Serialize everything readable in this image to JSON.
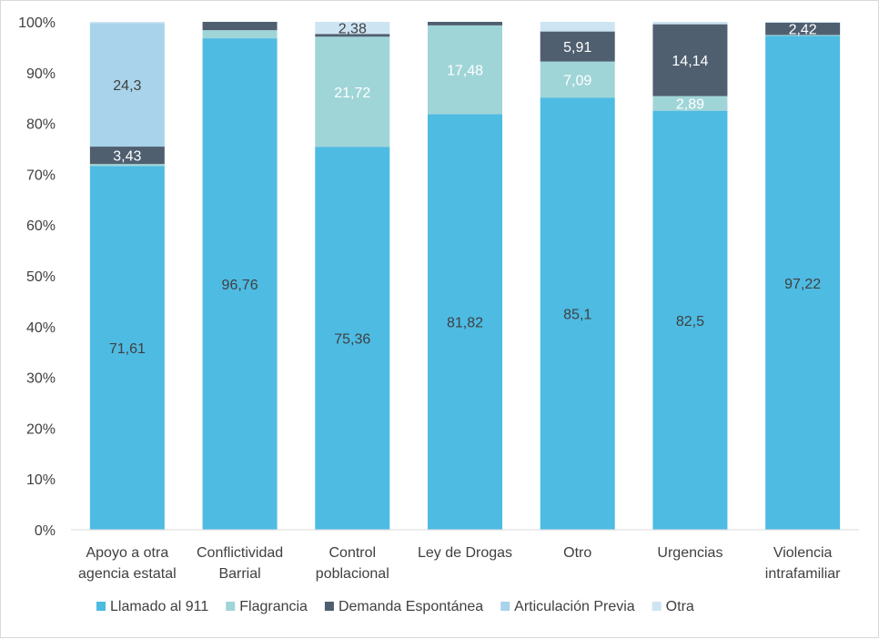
{
  "chart_data": {
    "type": "bar",
    "stacked": true,
    "percent_stacked": true,
    "categories": [
      [
        "Apoyo a otra",
        "agencia estatal"
      ],
      [
        "Conflictividad",
        "Barrial"
      ],
      [
        "Control",
        "poblacional"
      ],
      [
        "Ley de Drogas"
      ],
      [
        "Otro"
      ],
      [
        "Urgencias"
      ],
      [
        "Violencia",
        "intrafamiliar"
      ]
    ],
    "series": [
      {
        "name": "Llamado al 911",
        "color": "#4ebbe3",
        "label_color": "#404040",
        "values": [
          71.61,
          96.76,
          75.36,
          81.82,
          85.1,
          82.5,
          97.22
        ],
        "labels": [
          "71,61",
          "96,76",
          "75,36",
          "81,82",
          "85,1",
          "82,5",
          "97,22"
        ]
      },
      {
        "name": "Flagrancia",
        "color": "#a0d5d8",
        "label_color": "#ffffff",
        "values": [
          0.4,
          1.6,
          21.72,
          17.48,
          7.09,
          2.89,
          0.2
        ],
        "labels": [
          "",
          "",
          "21,72",
          "17,48",
          "7,09",
          "2,89",
          ""
        ]
      },
      {
        "name": "Demanda Espontánea",
        "color": "#4f5f70",
        "label_color": "#ffffff",
        "values": [
          3.43,
          1.64,
          0.54,
          0.7,
          5.91,
          14.14,
          2.42
        ],
        "labels": [
          "3,43",
          "",
          "",
          "",
          "5,91",
          "14,14",
          "2,42"
        ]
      },
      {
        "name": "Articulación Previa",
        "color": "#a9d3ea",
        "label_color": "#404040",
        "values": [
          24.3,
          0,
          0,
          0,
          0,
          0,
          0
        ],
        "labels": [
          "24,3",
          "",
          "",
          "",
          "",
          "",
          ""
        ]
      },
      {
        "name": "Otra",
        "color": "#cde4f3",
        "label_color": "#404040",
        "values": [
          0.26,
          0,
          2.38,
          0,
          1.9,
          0.47,
          0.16
        ],
        "labels": [
          "",
          "",
          "2,38",
          "",
          "",
          "",
          ""
        ]
      }
    ],
    "y_ticks": [
      "0%",
      "10%",
      "20%",
      "30%",
      "40%",
      "50%",
      "60%",
      "70%",
      "80%",
      "90%",
      "100%"
    ],
    "ylim": [
      0,
      100
    ],
    "title": "",
    "xlabel": "",
    "ylabel": "",
    "grid": false,
    "legend": "bottom"
  }
}
